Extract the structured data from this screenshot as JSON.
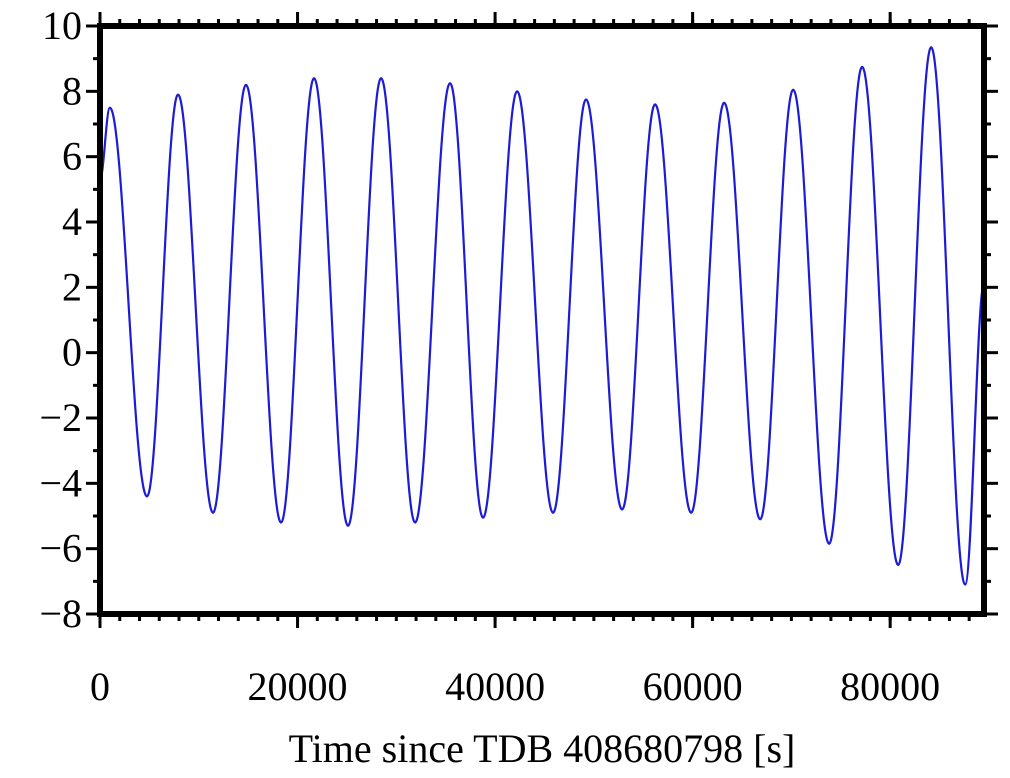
{
  "chart_data": {
    "type": "line",
    "xlabel": "Time since TDB 408680798 [s]",
    "x": [
      0,
      1000,
      4760,
      7900,
      11440,
      14780,
      18330,
      21670,
      25110,
      28460,
      31900,
      35440,
      38780,
      42230,
      45870,
      49210,
      52860,
      56200,
      59850,
      63190,
      66840,
      70180,
      73820,
      77160,
      80810,
      84150,
      87590,
      89500
    ],
    "series": [
      {
        "color": "#1c1cd6",
        "values": [
          5.3,
          7.5,
          -4.4,
          7.9,
          -4.9,
          8.2,
          -5.2,
          8.4,
          -5.3,
          8.4,
          -5.2,
          8.25,
          -5.05,
          8.0,
          -4.9,
          7.75,
          -4.8,
          7.6,
          -4.9,
          7.65,
          -5.1,
          8.05,
          -5.85,
          8.75,
          -6.5,
          9.35,
          -7.1,
          2.1
        ]
      }
    ],
    "xlim": [
      0,
      89500
    ],
    "ylim": [
      -8,
      10
    ],
    "xticks": [
      0,
      20000,
      40000,
      60000,
      80000
    ],
    "yticks": [
      {
        "value": -8,
        "label": "−8"
      },
      {
        "value": -6,
        "label": "−6"
      },
      {
        "value": -4,
        "label": "−4"
      },
      {
        "value": -2,
        "label": "−2"
      },
      0,
      2,
      4,
      6,
      8,
      10
    ],
    "xminorticks": [
      0,
      2000,
      4000,
      6000,
      8000,
      10000,
      12000,
      14000,
      16000,
      18000,
      20000,
      22000,
      24000,
      26000,
      28000,
      30000,
      32000,
      34000,
      36000,
      38000,
      40000,
      42000,
      44000,
      46000,
      48000,
      50000,
      52000,
      54000,
      56000,
      58000,
      60000,
      62000,
      64000,
      66000,
      68000,
      70000,
      72000,
      74000,
      76000,
      78000,
      80000,
      82000,
      84000,
      86000,
      88000
    ],
    "yminorticks": [
      -7,
      -5,
      -3,
      -1,
      1,
      3,
      5,
      7,
      9
    ]
  }
}
